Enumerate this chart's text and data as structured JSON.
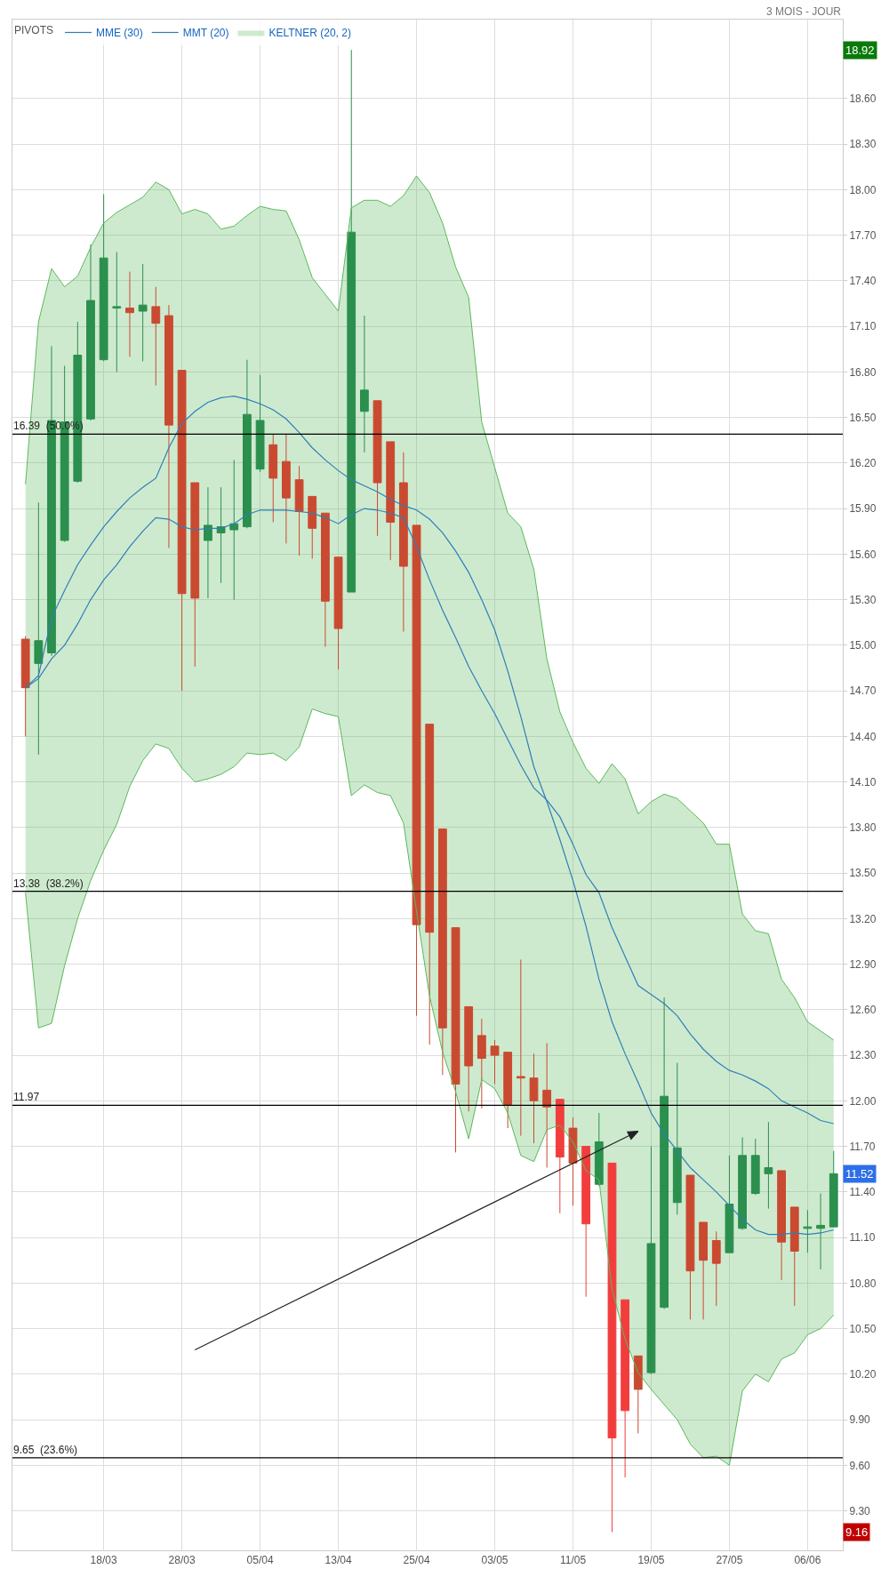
{
  "chart_data": {
    "type": "candlestick",
    "subtitle": "3 MOIS - JOUR",
    "categories": [
      null,
      null,
      null,
      null,
      null,
      null,
      "18/03",
      null,
      null,
      null,
      null,
      null,
      "28/03",
      null,
      null,
      null,
      null,
      null,
      "05/04",
      null,
      null,
      null,
      null,
      null,
      "13/04",
      null,
      null,
      null,
      null,
      null,
      "25/04",
      null,
      null,
      null,
      null,
      null,
      "03/05",
      null,
      null,
      null,
      null,
      null,
      "11/05",
      null,
      null,
      null,
      null,
      null,
      "19/05",
      null,
      null,
      null,
      null,
      null,
      "27/05",
      null,
      null,
      null,
      null,
      null,
      "06/06",
      null,
      null
    ],
    "ohlc": [
      [
        15.04,
        15.06,
        14.4,
        14.72
      ],
      [
        14.88,
        15.94,
        14.28,
        15.03
      ],
      [
        14.95,
        16.97,
        14.93,
        16.48
      ],
      [
        15.69,
        16.84,
        15.68,
        16.47
      ],
      [
        16.08,
        17.13,
        16.07,
        16.91
      ],
      [
        16.49,
        17.64,
        16.48,
        17.27
      ],
      [
        16.88,
        17.97,
        16.87,
        17.55
      ],
      [
        17.22,
        17.59,
        16.8,
        17.23
      ],
      [
        17.22,
        17.46,
        16.9,
        17.19
      ],
      [
        17.2,
        17.51,
        16.87,
        17.24
      ],
      [
        17.23,
        17.36,
        16.71,
        17.12
      ],
      [
        17.17,
        17.24,
        15.64,
        16.45
      ],
      [
        16.81,
        16.81,
        14.7,
        15.34
      ],
      [
        16.07,
        16.07,
        14.86,
        15.31
      ],
      [
        15.69,
        16.04,
        15.31,
        15.79
      ],
      [
        15.74,
        16.04,
        15.41,
        15.78
      ],
      [
        15.76,
        16.22,
        15.3,
        15.8
      ],
      [
        15.78,
        16.88,
        15.77,
        16.52
      ],
      [
        16.16,
        16.78,
        16.14,
        16.48
      ],
      [
        16.32,
        16.39,
        15.81,
        16.1
      ],
      [
        16.21,
        16.39,
        15.67,
        15.97
      ],
      [
        16.09,
        16.18,
        15.59,
        15.88
      ],
      [
        15.98,
        15.98,
        15.57,
        15.77
      ],
      [
        15.87,
        15.87,
        14.99,
        15.29
      ],
      [
        15.58,
        15.58,
        14.84,
        15.11
      ],
      [
        15.35,
        18.92,
        15.35,
        17.72
      ],
      [
        16.54,
        17.17,
        16.27,
        16.68
      ],
      [
        16.61,
        16.61,
        15.72,
        16.07
      ],
      [
        16.34,
        16.34,
        15.56,
        15.81
      ],
      [
        16.07,
        16.27,
        15.09,
        15.52
      ],
      [
        15.79,
        15.79,
        12.56,
        13.16
      ],
      [
        14.48,
        14.48,
        12.37,
        13.11
      ],
      [
        13.79,
        13.79,
        12.17,
        12.48
      ],
      [
        13.14,
        13.14,
        11.66,
        12.11
      ],
      [
        12.62,
        12.62,
        11.93,
        12.23
      ],
      [
        12.43,
        12.54,
        11.95,
        12.28
      ],
      [
        12.36,
        12.4,
        12.11,
        12.3
      ],
      [
        12.32,
        12.32,
        11.82,
        11.97
      ],
      [
        12.16,
        12.93,
        11.77,
        12.15
      ],
      [
        12.15,
        12.31,
        11.72,
        12.0
      ],
      [
        12.07,
        12.38,
        11.56,
        11.96
      ],
      [
        12.01,
        12.01,
        11.26,
        11.63
      ],
      [
        11.82,
        11.89,
        11.31,
        11.59
      ],
      [
        11.7,
        11.7,
        10.71,
        11.19
      ],
      [
        11.45,
        11.92,
        11.44,
        11.73
      ],
      [
        11.59,
        11.59,
        9.16,
        9.78
      ],
      [
        10.69,
        10.69,
        9.52,
        9.96
      ],
      [
        10.32,
        10.32,
        9.81,
        10.1
      ],
      [
        10.21,
        11.7,
        10.2,
        11.06
      ],
      [
        10.64,
        12.68,
        10.63,
        12.03
      ],
      [
        11.33,
        12.25,
        11.25,
        11.69
      ],
      [
        11.51,
        11.51,
        10.56,
        10.88
      ],
      [
        11.2,
        11.2,
        10.56,
        10.95
      ],
      [
        11.08,
        11.14,
        10.65,
        10.93
      ],
      [
        11.0,
        11.64,
        11.0,
        11.32
      ],
      [
        11.16,
        11.76,
        11.15,
        11.64
      ],
      [
        11.39,
        11.75,
        11.38,
        11.64
      ],
      [
        11.52,
        11.86,
        11.29,
        11.56
      ],
      [
        11.54,
        11.54,
        10.82,
        11.07
      ],
      [
        11.3,
        11.3,
        10.65,
        11.01
      ],
      [
        11.16,
        11.28,
        11.0,
        11.17
      ],
      [
        11.16,
        11.39,
        10.89,
        11.18
      ],
      [
        11.17,
        11.67,
        11.17,
        11.52
      ]
    ],
    "colors": [
      "#c94a30",
      "#2b8f4e",
      "#2b8f4e",
      "#2b8f4e",
      "#2b8f4e",
      "#2b8f4e",
      "#2b8f4e",
      "#2b8f4e",
      "#c94a30",
      "#2b8f4e",
      "#c94a30",
      "#c94a30",
      "#c94a30",
      "#c94a30",
      "#2b8f4e",
      "#2b8f4e",
      "#2b8f4e",
      "#2b8f4e",
      "#2b8f4e",
      "#c94a30",
      "#c94a30",
      "#c94a30",
      "#c94a30",
      "#c94a30",
      "#c94a30",
      "#2b8f4e",
      "#2b8f4e",
      "#c94a30",
      "#c94a30",
      "#c94a30",
      "#c94a30",
      "#c94a30",
      "#c94a30",
      "#c94a30",
      "#c94a30",
      "#c94a30",
      "#c94a30",
      "#c94a30",
      "#c94a30",
      "#c94a30",
      "#c94a30",
      "#f23d3d",
      "#c94a30",
      "#f23d3d",
      "#2b8f4e",
      "#f23d3d",
      "#f23d3d",
      "#c94a30",
      "#2b8f4e",
      "#2b8f4e",
      "#2b8f4e",
      "#c94a30",
      "#c94a30",
      "#c94a30",
      "#2b8f4e",
      "#2b8f4e",
      "#2b8f4e",
      "#2b8f4e",
      "#c94a30",
      "#c94a30",
      "#2b8f4e",
      "#2b8f4e",
      "#2b8f4e"
    ],
    "series": [
      {
        "name": "MME (30)",
        "type": "line",
        "color": "#2e7fb8",
        "values": [
          14.72,
          14.8,
          15.18,
          15.36,
          15.53,
          15.66,
          15.78,
          15.88,
          15.97,
          16.04,
          16.1,
          16.3,
          16.46,
          16.54,
          16.6,
          16.63,
          16.64,
          16.62,
          16.59,
          16.55,
          16.49,
          16.4,
          16.3,
          16.22,
          16.15,
          16.09,
          16.05,
          16.01,
          15.96,
          15.92,
          15.89,
          15.83,
          15.74,
          15.62,
          15.48,
          15.3,
          15.1,
          14.83,
          14.53,
          14.2,
          13.97,
          13.72,
          13.45,
          13.15,
          12.8,
          12.52,
          12.31,
          12.12,
          11.92,
          11.78,
          11.67,
          11.56,
          11.48,
          11.4,
          11.31,
          11.22,
          11.15,
          11.12,
          11.12,
          11.13,
          11.12,
          11.13,
          11.15
        ]
      },
      {
        "name": "MMT (20)",
        "type": "line",
        "color": "#2e7fb8",
        "values": [
          14.72,
          14.78,
          14.91,
          15.0,
          15.14,
          15.3,
          15.43,
          15.53,
          15.65,
          15.75,
          15.84,
          15.83,
          15.78,
          15.76,
          15.77,
          15.77,
          15.8,
          15.86,
          15.89,
          15.89,
          15.89,
          15.88,
          15.87,
          15.84,
          15.8,
          15.86,
          15.9,
          15.89,
          15.87,
          15.84,
          15.65,
          15.43,
          15.23,
          15.05,
          14.86,
          14.7,
          14.55,
          14.38,
          14.21,
          14.06,
          13.98,
          13.87,
          13.69,
          13.49,
          13.37,
          13.14,
          12.95,
          12.76,
          12.7,
          12.64,
          12.56,
          12.44,
          12.34,
          12.26,
          12.2,
          12.17,
          12.13,
          12.08,
          12.0,
          11.96,
          11.92,
          11.87,
          11.85
        ]
      },
      {
        "type": "line",
        "color": "#5cb85c",
        "values": [
          13.37,
          12.48,
          12.51,
          12.89,
          13.2,
          13.45,
          13.65,
          13.82,
          14.07,
          14.24,
          14.35,
          14.32,
          14.19,
          14.1,
          14.12,
          14.15,
          14.2,
          14.29,
          14.28,
          14.29,
          14.24,
          14.33,
          14.58,
          14.55,
          14.53,
          14.01,
          14.08,
          14.03,
          14.01,
          13.83,
          13.25,
          12.69,
          12.32,
          12.06,
          11.75,
          12.14,
          12.08,
          11.92,
          11.64,
          11.6,
          11.81,
          11.84,
          11.73,
          11.54,
          11.48,
          10.76,
          10.43,
          10.21,
          10.1,
          10.0,
          9.9,
          9.74,
          9.65,
          9.66,
          9.6,
          10.09,
          10.2,
          10.15,
          10.3,
          10.34,
          10.46,
          10.5,
          10.59
        ]
      },
      {
        "name": "KELTNER (20, 2)",
        "type": "area",
        "color": "#5cb85c",
        "values": [
          16.06,
          17.13,
          17.48,
          17.36,
          17.43,
          17.62,
          17.78,
          17.85,
          17.9,
          17.95,
          18.05,
          18.0,
          17.84,
          17.87,
          17.84,
          17.74,
          17.76,
          17.83,
          17.89,
          17.87,
          17.86,
          17.67,
          17.42,
          17.31,
          17.2,
          17.88,
          17.93,
          17.93,
          17.89,
          17.96,
          18.09,
          17.98,
          17.78,
          17.49,
          17.29,
          16.47,
          16.17,
          15.87,
          15.78,
          15.5,
          14.91,
          14.56,
          14.36,
          14.19,
          14.09,
          14.22,
          14.12,
          13.89,
          13.97,
          14.02,
          13.99,
          13.91,
          13.83,
          13.69,
          13.69,
          13.23,
          13.12,
          13.1,
          12.8,
          12.68,
          12.52,
          12.46,
          12.4
        ]
      },
      {
        "type": "line",
        "color": "#222222",
        "line_style": "solid",
        "values": [
          null,
          null,
          null,
          null,
          null,
          null,
          null,
          null,
          null,
          null,
          null,
          null,
          null,
          10.36,
          null,
          null,
          null,
          null,
          null,
          null,
          null,
          null,
          null,
          null,
          null,
          null,
          null,
          null,
          null,
          null,
          null,
          null,
          null,
          null,
          null,
          null,
          null,
          null,
          null,
          null,
          null,
          null,
          null,
          null,
          null,
          null,
          null,
          11.8,
          null,
          null,
          null,
          null,
          null,
          null,
          null,
          null,
          null,
          null,
          null,
          null,
          null,
          null,
          null
        ]
      }
    ],
    "ref_lines": [
      {
        "axis": "y",
        "value": 16.39,
        "label": "16.39  (50.0%)",
        "color": "#000000"
      },
      {
        "axis": "y",
        "value": 13.38,
        "label": "13.38  (38.2%)",
        "color": "#000000"
      },
      {
        "axis": "y",
        "value": 11.97,
        "label": "11.97",
        "color": "#000000"
      },
      {
        "axis": "y",
        "value": 9.65,
        "label": "9.65  (23.6%)",
        "color": "#000000"
      }
    ],
    "annotations": [
      {
        "text": "18.92",
        "y": 18.92
      },
      {
        "text": "11.52",
        "y": 11.52
      },
      {
        "text": "9.16",
        "y": 9.16
      }
    ],
    "legend_title": "PIVOTS",
    "legend": "top left",
    "grid": true,
    "ylim": [
      9.04,
      19.12
    ],
    "yticks": [
      {
        "value": 9.3,
        "label": "9.30"
      },
      {
        "value": 9.6,
        "label": "9.60"
      },
      {
        "value": 9.9,
        "label": "9.90"
      },
      {
        "value": 10.2,
        "label": "10.20"
      },
      {
        "value": 10.5,
        "label": "10.50"
      },
      {
        "value": 10.8,
        "label": "10.80"
      },
      {
        "value": 11.1,
        "label": "11.10"
      },
      {
        "value": 11.4,
        "label": "11.40"
      },
      {
        "value": 11.7,
        "label": "11.70"
      },
      {
        "value": 12.0,
        "label": "12.00"
      },
      {
        "value": 12.3,
        "label": "12.30"
      },
      {
        "value": 12.6,
        "label": "12.60"
      },
      {
        "value": 12.9,
        "label": "12.90"
      },
      {
        "value": 13.2,
        "label": "13.20"
      },
      {
        "value": 13.5,
        "label": "13.50"
      },
      {
        "value": 13.8,
        "label": "13.80"
      },
      {
        "value": 14.1,
        "label": "14.10"
      },
      {
        "value": 14.4,
        "label": "14.40"
      },
      {
        "value": 14.7,
        "label": "14.70"
      },
      {
        "value": 15.0,
        "label": "15.00"
      },
      {
        "value": 15.3,
        "label": "15.30"
      },
      {
        "value": 15.6,
        "label": "15.60"
      },
      {
        "value": 15.9,
        "label": "15.90"
      },
      {
        "value": 16.2,
        "label": "16.20"
      },
      {
        "value": 16.5,
        "label": "16.50"
      },
      {
        "value": 16.8,
        "label": "16.80"
      },
      {
        "value": 17.1,
        "label": "17.10"
      },
      {
        "value": 17.4,
        "label": "17.40"
      },
      {
        "value": 17.7,
        "label": "17.70"
      },
      {
        "value": 18.0,
        "label": "18.00"
      },
      {
        "value": 18.3,
        "label": "18.30"
      },
      {
        "value": 18.6,
        "label": "18.60"
      }
    ]
  }
}
